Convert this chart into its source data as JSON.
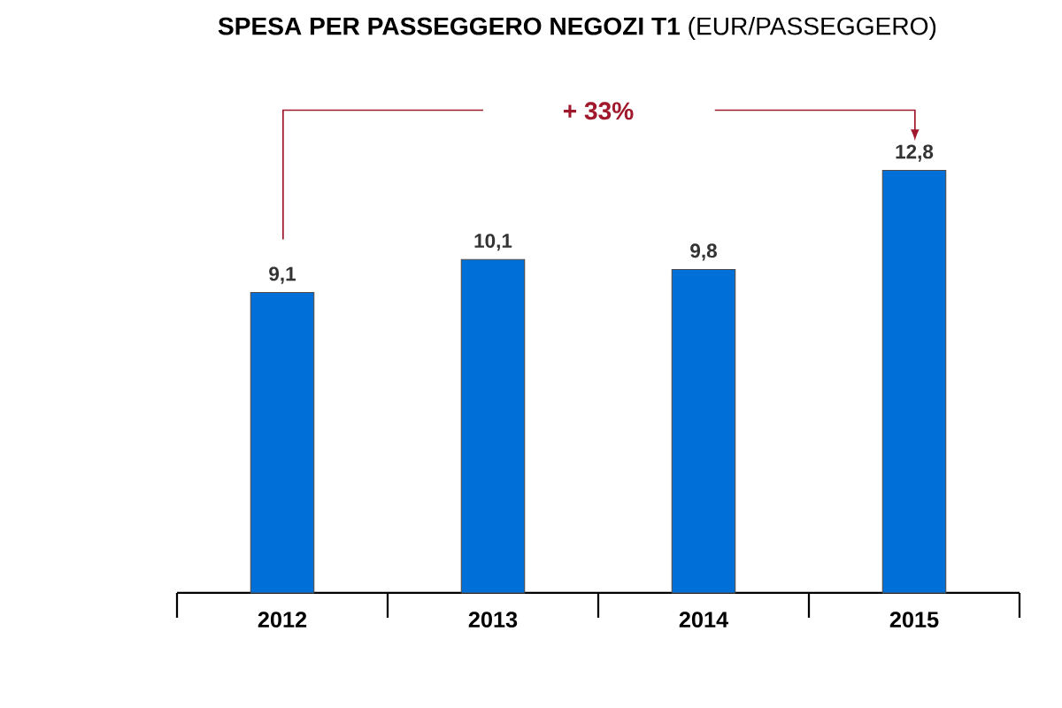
{
  "chart_data": {
    "type": "bar",
    "title": "**SPESA PER PASSEGGERO NEGOZI T1** (EUR/PASSEGGERO)",
    "categories": [
      "2012",
      "2013",
      "2014",
      "2015"
    ],
    "values": [
      9.1,
      10.1,
      9.8,
      12.8
    ],
    "value_labels": [
      "9,1",
      "10,1",
      "9,8",
      "12,8"
    ],
    "color": "#0070d8",
    "annotations": [
      "+ 33%"
    ]
  }
}
